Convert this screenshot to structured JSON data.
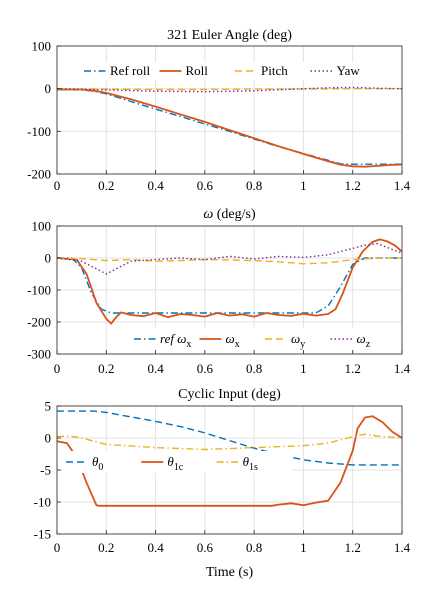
{
  "colors": {
    "blue": "#0072bd",
    "red": "#d95319",
    "yellow": "#edb120",
    "purple": "#7e2f8e"
  },
  "chart_data": [
    {
      "type": "line",
      "title": "321 Euler Angle (deg)",
      "xlabel": "",
      "ylabel": "",
      "xlim": [
        0,
        1.4
      ],
      "ylim": [
        -200,
        100
      ],
      "xticks": [
        0,
        0.2,
        0.4,
        0.6,
        0.8,
        1,
        1.2,
        1.4
      ],
      "xtick_labels": [
        "0",
        "0.2",
        "0.4",
        "0.6",
        "0.8",
        "1",
        "1.2",
        "1.4"
      ],
      "yticks": [
        100,
        0,
        -100,
        -200
      ],
      "ytick_labels": [
        "100",
        "0",
        "-100",
        "-200"
      ],
      "grid": true,
      "legend_placement": "top",
      "series": [
        {
          "name": "Ref roll",
          "color": "#0072bd",
          "dash": "dashdot",
          "x": [
            0,
            0.1,
            0.15,
            0.2,
            0.3,
            0.4,
            0.5,
            0.6,
            0.7,
            0.8,
            0.9,
            1.0,
            1.1,
            1.15,
            1.2,
            1.3,
            1.4
          ],
          "y": [
            -2,
            -3,
            -6,
            -12,
            -30,
            -48,
            -65,
            -83,
            -100,
            -118,
            -136,
            -152,
            -168,
            -176,
            -177,
            -177,
            -177
          ]
        },
        {
          "name": "Roll",
          "color": "#d95319",
          "dash": "solid",
          "x": [
            0,
            0.1,
            0.15,
            0.2,
            0.3,
            0.4,
            0.5,
            0.6,
            0.7,
            0.8,
            0.9,
            1.0,
            1.1,
            1.15,
            1.2,
            1.25,
            1.3,
            1.35,
            1.4
          ],
          "y": [
            -2,
            -2,
            -5,
            -10,
            -25,
            -42,
            -60,
            -78,
            -97,
            -116,
            -135,
            -153,
            -170,
            -178,
            -182,
            -183,
            -181,
            -179,
            -178
          ]
        },
        {
          "name": "Pitch",
          "color": "#edb120",
          "dash": "dashed",
          "x": [
            0,
            0.2,
            0.4,
            0.6,
            0.8,
            1.0,
            1.2,
            1.3,
            1.4
          ],
          "y": [
            0,
            -1,
            -2,
            -2,
            -1,
            -1,
            0,
            0,
            0
          ]
        },
        {
          "name": "Yaw",
          "color": "#7e2f8e",
          "dash": "dotted",
          "x": [
            0,
            0.2,
            0.4,
            0.6,
            0.8,
            1.0,
            1.1,
            1.2,
            1.3,
            1.4
          ],
          "y": [
            0,
            -3,
            -6,
            -7,
            -5,
            0,
            2,
            3,
            1,
            0
          ]
        }
      ]
    },
    {
      "type": "line",
      "title": "ω (deg/s)",
      "xlabel": "",
      "ylabel": "",
      "xlim": [
        0,
        1.4
      ],
      "ylim": [
        -300,
        100
      ],
      "xticks": [
        0,
        0.2,
        0.4,
        0.6,
        0.8,
        1,
        1.2,
        1.4
      ],
      "xtick_labels": [
        "0",
        "0.2",
        "0.4",
        "0.6",
        "0.8",
        "1",
        "1.2",
        "1.4"
      ],
      "yticks": [
        100,
        0,
        -100,
        -200,
        -300
      ],
      "ytick_labels": [
        "100",
        "0",
        "-100",
        "-200",
        "-300"
      ],
      "grid": true,
      "legend_placement": "bottom",
      "series": [
        {
          "name": "ref ω",
          "sub": "x",
          "color": "#0072bd",
          "dash": "dashdot",
          "x": [
            0,
            0.06,
            0.1,
            0.14,
            0.18,
            0.22,
            0.3,
            0.5,
            0.7,
            0.9,
            1.05,
            1.1,
            1.15,
            1.2,
            1.25,
            1.4
          ],
          "y": [
            0,
            0,
            -30,
            -110,
            -160,
            -172,
            -172,
            -172,
            -172,
            -172,
            -172,
            -150,
            -90,
            -20,
            0,
            0
          ]
        },
        {
          "name": "ω",
          "sub": "x",
          "color": "#d95319",
          "dash": "solid",
          "x": [
            0,
            0.08,
            0.12,
            0.16,
            0.2,
            0.22,
            0.24,
            0.26,
            0.3,
            0.35,
            0.4,
            0.45,
            0.5,
            0.55,
            0.6,
            0.65,
            0.7,
            0.75,
            0.8,
            0.85,
            0.9,
            0.95,
            1.0,
            1.05,
            1.1,
            1.13,
            1.16,
            1.2,
            1.24,
            1.28,
            1.31,
            1.34,
            1.37,
            1.4
          ],
          "y": [
            0,
            -5,
            -50,
            -140,
            -190,
            -205,
            -185,
            -170,
            -178,
            -182,
            -172,
            -185,
            -175,
            -178,
            -183,
            -172,
            -180,
            -176,
            -183,
            -172,
            -178,
            -181,
            -174,
            -180,
            -175,
            -160,
            -110,
            -30,
            20,
            50,
            58,
            52,
            40,
            20
          ]
        },
        {
          "name": "ω",
          "sub": "y",
          "color": "#edb120",
          "dash": "dashed",
          "x": [
            0,
            0.1,
            0.2,
            0.3,
            0.4,
            0.5,
            0.6,
            0.7,
            0.8,
            0.9,
            1.0,
            1.1,
            1.2,
            1.3,
            1.4
          ],
          "y": [
            0,
            -2,
            -8,
            -5,
            -10,
            -8,
            -5,
            -6,
            -8,
            -12,
            -18,
            -15,
            -5,
            0,
            0
          ]
        },
        {
          "name": "ω",
          "sub": "z",
          "color": "#7e2f8e",
          "dash": "dotted",
          "x": [
            0,
            0.1,
            0.15,
            0.2,
            0.25,
            0.3,
            0.4,
            0.5,
            0.6,
            0.7,
            0.8,
            0.9,
            1.0,
            1.1,
            1.2,
            1.25,
            1.3,
            1.35,
            1.4
          ],
          "y": [
            0,
            -10,
            -30,
            -50,
            -30,
            -10,
            -5,
            0,
            -5,
            5,
            -3,
            5,
            2,
            10,
            30,
            40,
            45,
            30,
            15
          ]
        }
      ]
    },
    {
      "type": "line",
      "title": "Cyclic Input (deg)",
      "xlabel": "Time (s)",
      "ylabel": "",
      "xlim": [
        0,
        1.4
      ],
      "ylim": [
        -15,
        5
      ],
      "xticks": [
        0,
        0.2,
        0.4,
        0.6,
        0.8,
        1,
        1.2,
        1.4
      ],
      "xtick_labels": [
        "0",
        "0.2",
        "0.4",
        "0.6",
        "0.8",
        "1",
        "1.2",
        "1.4"
      ],
      "yticks": [
        5,
        0,
        -5,
        -10,
        -15
      ],
      "ytick_labels": [
        "5",
        "0",
        "-5",
        "-10",
        "-15"
      ],
      "grid": true,
      "legend_placement": "bottom-left",
      "series": [
        {
          "name": "θ",
          "sub": "0",
          "color": "#0072bd",
          "dash": "dashed",
          "x": [
            0,
            0.15,
            0.2,
            0.3,
            0.4,
            0.5,
            0.6,
            0.7,
            0.8,
            0.9,
            1.0,
            1.1,
            1.2,
            1.4
          ],
          "y": [
            4.2,
            4.2,
            4.0,
            3.3,
            2.6,
            1.8,
            0.8,
            -0.4,
            -1.6,
            -2.6,
            -3.4,
            -3.9,
            -4.2,
            -4.2
          ]
        },
        {
          "name": "θ",
          "sub": "1c",
          "color": "#d95319",
          "dash": "solid",
          "x": [
            0,
            0.04,
            0.08,
            0.12,
            0.16,
            0.17,
            0.3,
            0.5,
            0.7,
            0.87,
            0.9,
            0.95,
            1.0,
            1.05,
            1.1,
            1.15,
            1.2,
            1.22,
            1.25,
            1.28,
            1.32,
            1.36,
            1.4
          ],
          "y": [
            -0.5,
            -0.8,
            -3,
            -7,
            -10.5,
            -10.6,
            -10.6,
            -10.6,
            -10.6,
            -10.6,
            -10.4,
            -10.2,
            -10.5,
            -10.1,
            -9.8,
            -7,
            -2,
            1.5,
            3.2,
            3.4,
            2.5,
            1.0,
            0
          ]
        },
        {
          "name": "θ",
          "sub": "1s",
          "color": "#edb120",
          "dash": "dashdot",
          "x": [
            0,
            0.05,
            0.1,
            0.2,
            0.4,
            0.6,
            0.8,
            1.0,
            1.1,
            1.2,
            1.25,
            1.3,
            1.4
          ],
          "y": [
            0.2,
            0.3,
            0,
            -1.0,
            -1.5,
            -1.8,
            -1.5,
            -1.2,
            -0.8,
            0.2,
            0.6,
            0.3,
            0
          ]
        }
      ]
    }
  ]
}
